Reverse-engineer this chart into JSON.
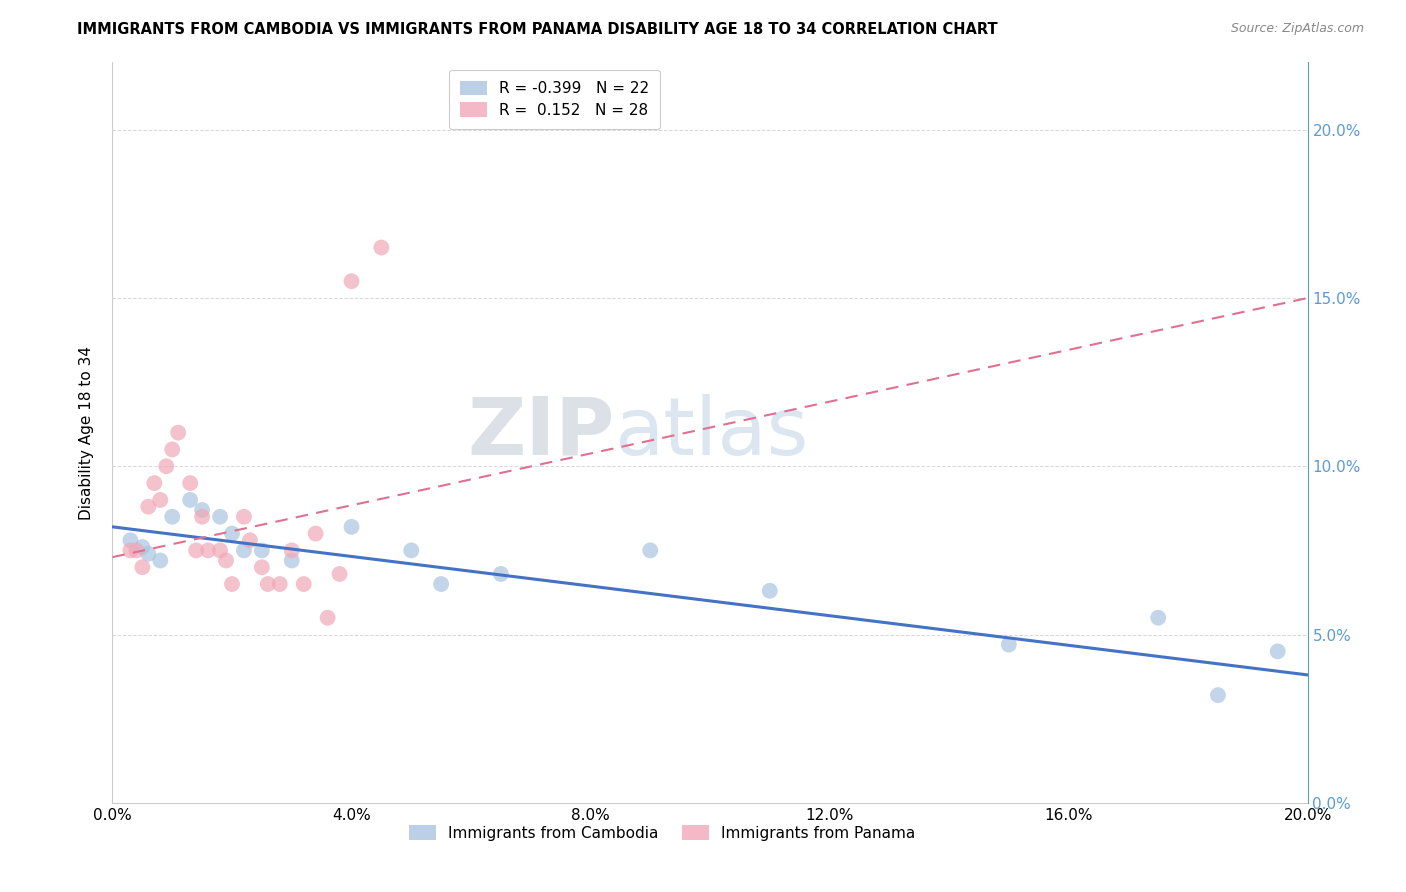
{
  "title": "IMMIGRANTS FROM CAMBODIA VS IMMIGRANTS FROM PANAMA DISABILITY AGE 18 TO 34 CORRELATION CHART",
  "source": "Source: ZipAtlas.com",
  "ylabel": "Disability Age 18 to 34",
  "xlim": [
    0.0,
    0.2
  ],
  "ylim": [
    0.0,
    0.22
  ],
  "yticks": [
    0.0,
    0.05,
    0.1,
    0.15,
    0.2
  ],
  "xticks": [
    0.0,
    0.04,
    0.08,
    0.12,
    0.16,
    0.2
  ],
  "xtick_labels": [
    "0.0%",
    "4.0%",
    "8.0%",
    "12.0%",
    "16.0%",
    "20.0%"
  ],
  "ytick_labels_right": [
    "0.0%",
    "5.0%",
    "10.0%",
    "15.0%",
    "20.0%"
  ],
  "cambodia_color": "#aac4e0",
  "panama_color": "#f0a8b8",
  "cambodia_line_color": "#4472c4",
  "panama_line_color": "#e07090",
  "cambodia_R": -0.399,
  "cambodia_N": 22,
  "panama_R": 0.152,
  "panama_N": 28,
  "watermark_zip": "ZIP",
  "watermark_atlas": "atlas",
  "grid_color": "#d8d8d8",
  "cambodia_x": [
    0.003,
    0.005,
    0.006,
    0.008,
    0.01,
    0.013,
    0.015,
    0.018,
    0.02,
    0.022,
    0.025,
    0.03,
    0.04,
    0.05,
    0.055,
    0.065,
    0.09,
    0.11,
    0.15,
    0.175,
    0.185,
    0.195
  ],
  "cambodia_y": [
    0.078,
    0.076,
    0.074,
    0.072,
    0.085,
    0.09,
    0.087,
    0.085,
    0.08,
    0.075,
    0.075,
    0.072,
    0.082,
    0.075,
    0.065,
    0.068,
    0.075,
    0.063,
    0.047,
    0.055,
    0.032,
    0.045
  ],
  "panama_x": [
    0.003,
    0.004,
    0.005,
    0.006,
    0.007,
    0.008,
    0.009,
    0.01,
    0.011,
    0.013,
    0.014,
    0.015,
    0.016,
    0.018,
    0.019,
    0.02,
    0.022,
    0.023,
    0.025,
    0.026,
    0.028,
    0.03,
    0.032,
    0.034,
    0.036,
    0.038,
    0.04,
    0.045
  ],
  "panama_y": [
    0.075,
    0.075,
    0.07,
    0.088,
    0.095,
    0.09,
    0.1,
    0.105,
    0.11,
    0.095,
    0.075,
    0.085,
    0.075,
    0.075,
    0.072,
    0.065,
    0.085,
    0.078,
    0.07,
    0.065,
    0.065,
    0.075,
    0.065,
    0.08,
    0.055,
    0.068,
    0.155,
    0.165
  ],
  "cambodia_line_x0": 0.0,
  "cambodia_line_y0": 0.082,
  "cambodia_line_x1": 0.2,
  "cambodia_line_y1": 0.038,
  "panama_line_x0": 0.0,
  "panama_line_y0": 0.073,
  "panama_line_x1": 0.2,
  "panama_line_y1": 0.15
}
